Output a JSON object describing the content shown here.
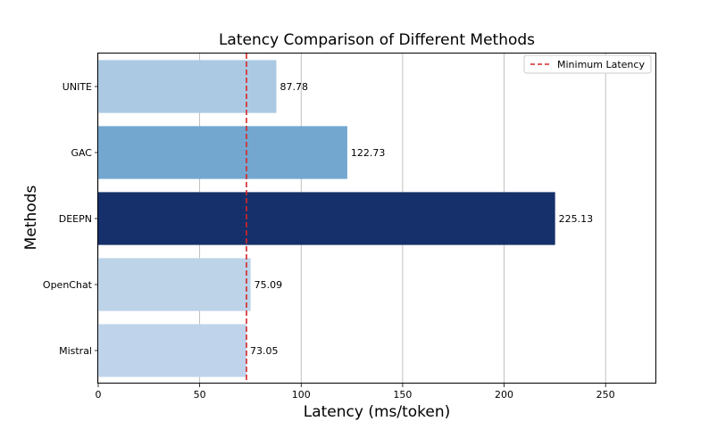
{
  "chart_data": {
    "type": "bar",
    "orientation": "horizontal",
    "title": "Latency Comparison of Different Methods",
    "xlabel": "Latency (ms/token)",
    "ylabel": "Methods",
    "categories": [
      "UNITE",
      "GAC",
      "DEEPN",
      "OpenChat",
      "Mistral"
    ],
    "values": [
      87.78,
      122.73,
      225.13,
      75.09,
      73.05
    ],
    "value_labels": [
      "87.78",
      "122.73",
      "225.13",
      "75.09",
      "73.05"
    ],
    "bar_colors": [
      "#abc9e2",
      "#73a7d0",
      "#15306a",
      "#bcd3e8",
      "#bfd4ea"
    ],
    "xlim": [
      0,
      275
    ],
    "xticks": [
      0,
      50,
      100,
      150,
      200,
      250
    ],
    "xtick_labels": [
      "0",
      "50",
      "100",
      "150",
      "200",
      "250"
    ],
    "grid": "x",
    "reference_line": {
      "label": "Minimum Latency",
      "value": 73.05,
      "color": "#d62728",
      "style": "dashed"
    },
    "legend": {
      "location": "top-right",
      "entries": [
        "Minimum Latency"
      ]
    }
  }
}
